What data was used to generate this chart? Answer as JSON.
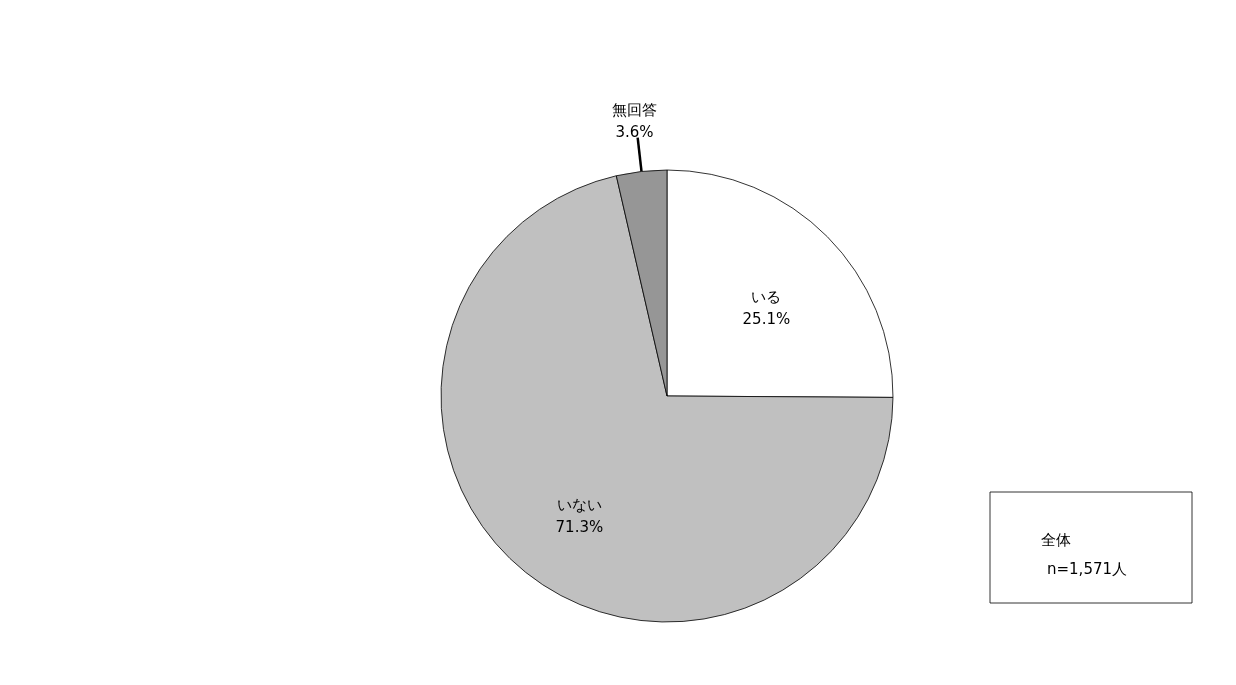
{
  "chart_data": {
    "type": "pie",
    "categories": [
      "いる",
      "いない",
      "無回答"
    ],
    "values": [
      25.1,
      71.3,
      3.6
    ],
    "colors": [
      "#ffffff",
      "#c0c0c0",
      "#969696"
    ],
    "value_labels": [
      "25.1%",
      "71.3%",
      "3.6%"
    ],
    "annotations": [
      "全体",
      "n=1,571人"
    ]
  }
}
